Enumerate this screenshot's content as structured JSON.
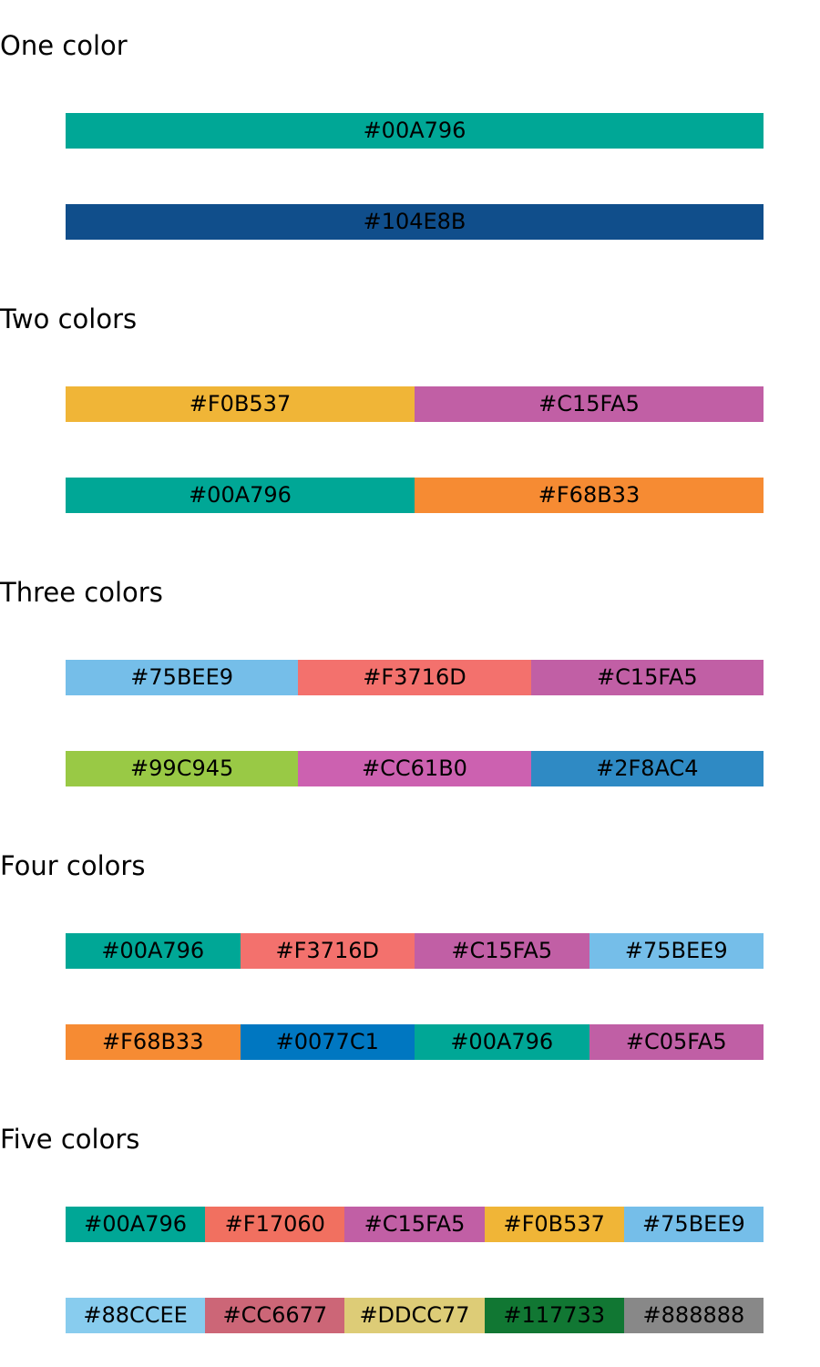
{
  "groups": [
    {
      "title": "One color",
      "palettes": [
        [
          "#00A796"
        ],
        [
          "#104E8B"
        ]
      ]
    },
    {
      "title": "Two colors",
      "palettes": [
        [
          "#F0B537",
          "#C15FA5"
        ],
        [
          "#00A796",
          "#F68B33"
        ]
      ]
    },
    {
      "title": "Three colors",
      "palettes": [
        [
          "#75BEE9",
          "#F3716D",
          "#C15FA5"
        ],
        [
          "#99C945",
          "#CC61B0",
          "#2F8AC4"
        ]
      ]
    },
    {
      "title": "Four colors",
      "palettes": [
        [
          "#00A796",
          "#F3716D",
          "#C15FA5",
          "#75BEE9"
        ],
        [
          "#F68B33",
          "#0077C1",
          "#00A796",
          "#C05FA5"
        ]
      ]
    },
    {
      "title": "Five colors",
      "palettes": [
        [
          "#00A796",
          "#F17060",
          "#C15FA5",
          "#F0B537",
          "#75BEE9"
        ],
        [
          "#88CCEE",
          "#CC6677",
          "#DDCC77",
          "#117733",
          "#888888"
        ]
      ]
    }
  ]
}
